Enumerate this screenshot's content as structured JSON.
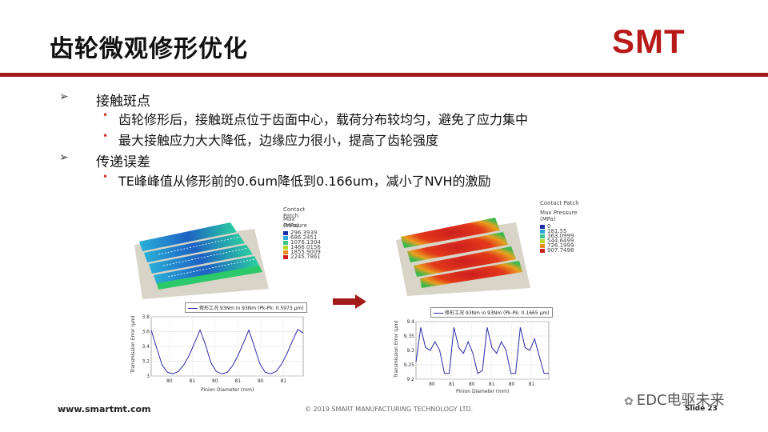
{
  "slide": {
    "title": "齿轮微观修形优化",
    "logo": "SMT",
    "sections": [
      {
        "heading": "接触斑点",
        "bullets": [
          "齿轮修形后，接触斑点位于齿面中心，载荷分布较均匀，避免了应力集中",
          "最大接触应力大大降低，边缘应力很小，提高了齿轮强度"
        ]
      },
      {
        "heading": "传递误差",
        "bullets": [
          "TE峰峰值从修形前的0.6um降低到0.166um，减小了NVH的激励"
        ]
      }
    ],
    "footer": {
      "website": "www.smartmt.com",
      "copyright": "© 2019 SMART MANUFACTURING TECHNOLOGY LTD.",
      "slide_number": "Slide 23"
    },
    "watermark": "EDC电驱未来"
  },
  "before": {
    "contact": {
      "title": "Contact Patch",
      "subtitle": "Max Pressure",
      "unit": "(MPa)",
      "legend": [
        {
          "value": "296.3939",
          "color": "#1a2ea8"
        },
        {
          "value": "686.2451",
          "color": "#2fa8d8"
        },
        {
          "value": "1076.1304",
          "color": "#39c48a"
        },
        {
          "value": "1466.0156",
          "color": "#b7d62a"
        },
        {
          "value": "1855.9009",
          "color": "#e88a23"
        },
        {
          "value": "2245.7861",
          "color": "#cc1f1f"
        }
      ]
    },
    "te_chart": {
      "legend": "修形工况 93Nm in 93Nm (Pk-Pk: 0.5973 µm)",
      "ylabel": "Transmission Error (µm)",
      "xlabel": "Pinion Diameter (mm)",
      "yticks": [
        "3.8",
        "3.6",
        "3.4",
        "3.2",
        "3"
      ],
      "xticks": [
        "80",
        "81",
        "80",
        "81",
        "80",
        "81"
      ]
    }
  },
  "after": {
    "contact": {
      "title": "Contact Patch",
      "subtitle": "Max Pressure",
      "unit": "(MPa)",
      "legend": [
        {
          "value": "0",
          "color": "#1a2ea8"
        },
        {
          "value": "181.55",
          "color": "#2fa8d8"
        },
        {
          "value": "363.0999",
          "color": "#39c48a"
        },
        {
          "value": "544.6499",
          "color": "#b7d62a"
        },
        {
          "value": "726.1999",
          "color": "#e88a23"
        },
        {
          "value": "907.7498",
          "color": "#cc1f1f"
        }
      ]
    },
    "te_chart": {
      "legend": "修形工况 93Nm in 93Nm (Pk-Pk: 0.1665 µm)",
      "ylabel": "Transmission Error (µm)",
      "xlabel": "Pinion Diameter (mm)",
      "yticks": [
        "9.4",
        "9.35",
        "9.3",
        "9.25",
        "9.2"
      ],
      "xticks": [
        "80",
        "81",
        "80",
        "81",
        "80",
        "81"
      ]
    }
  },
  "chart_data": [
    {
      "type": "line",
      "xlabel": "Pinion Diameter (mm)",
      "ylabel": "Transmission Error (µm)",
      "ylim": [
        3.0,
        3.8
      ],
      "series": [
        {
          "name": "修形工况 93Nm in 93Nm (Pk-Pk: 0.5973 µm)",
          "values": [
            3.62,
            3.38,
            3.15,
            3.05,
            3.03,
            3.06,
            3.15,
            3.28,
            3.45,
            3.62,
            3.42,
            3.18,
            3.06,
            3.03,
            3.05,
            3.14,
            3.28,
            3.45,
            3.62,
            3.4,
            3.17,
            3.05,
            3.03,
            3.06,
            3.16,
            3.3,
            3.47,
            3.63,
            3.58
          ]
        }
      ],
      "grid": true
    },
    {
      "type": "line",
      "xlabel": "Pinion Diameter (mm)",
      "ylabel": "Transmission Error (µm)",
      "ylim": [
        9.2,
        9.4
      ],
      "series": [
        {
          "name": "修形工况 93Nm in 93Nm (Pk-Pk: 0.1665 µm)",
          "values": [
            9.26,
            9.38,
            9.31,
            9.3,
            9.33,
            9.3,
            9.22,
            9.22,
            9.38,
            9.31,
            9.29,
            9.33,
            9.29,
            9.22,
            9.23,
            9.38,
            9.31,
            9.29,
            9.33,
            9.3,
            9.22,
            9.22,
            9.38,
            9.31,
            9.3,
            9.34,
            9.28,
            9.22,
            9.22
          ]
        }
      ],
      "grid": true
    }
  ]
}
